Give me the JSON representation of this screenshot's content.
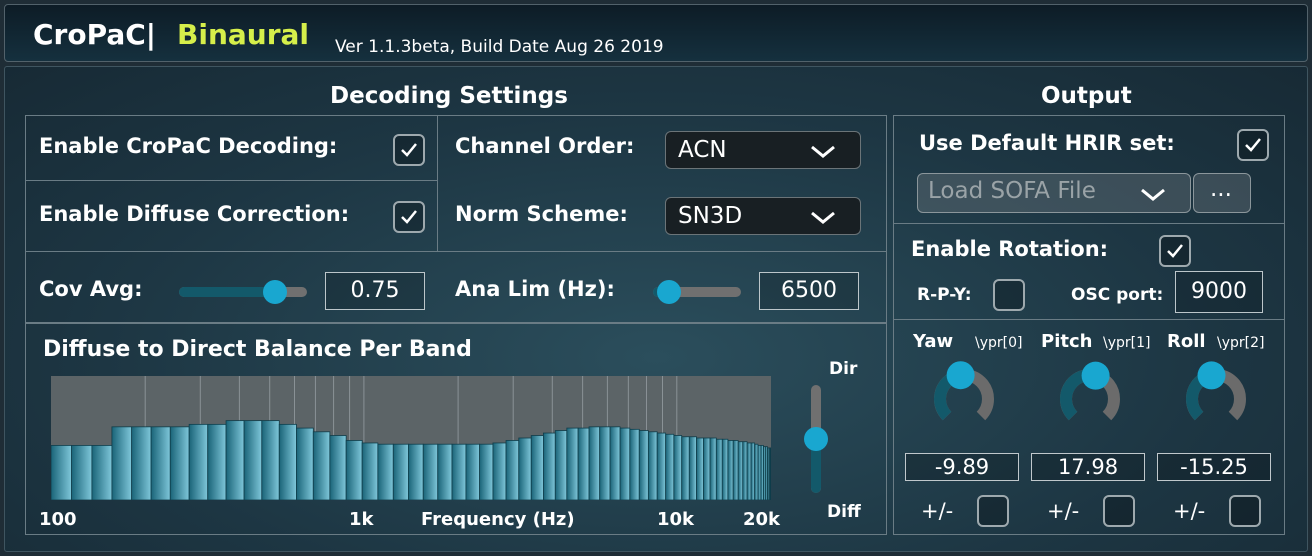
{
  "header": {
    "title": "CroPaC|",
    "subtitle": "Binaural",
    "version": "Ver 1.1.3beta, Build Date Aug 26 2019"
  },
  "decoding": {
    "title": "Decoding Settings",
    "enable_cropac_label": "Enable CroPaC Decoding:",
    "enable_cropac_checked": true,
    "enable_diffuse_label": "Enable Diffuse Correction:",
    "enable_diffuse_checked": true,
    "channel_order_label": "Channel Order:",
    "channel_order_value": "ACN",
    "norm_scheme_label": "Norm Scheme:",
    "norm_scheme_value": "SN3D",
    "cov_avg_label": "Cov Avg:",
    "cov_avg_value": "0.75",
    "cov_avg_fraction": 0.75,
    "ana_lim_label": "Ana Lim (Hz):",
    "ana_lim_value": "6500",
    "ana_lim_fraction": 0.18
  },
  "balance": {
    "title": "Diffuse to Direct Balance Per Band",
    "xlabel": "Frequency (Hz)",
    "x_ticks": [
      "100",
      "1k",
      "10k",
      "20k"
    ],
    "top_label": "Dir",
    "bottom_label": "Diff",
    "slider_fraction": 0.5
  },
  "chart_data": {
    "type": "bar",
    "xlabel": "Frequency (Hz)",
    "x_ticks": [
      "100",
      "1k",
      "10k",
      "20k"
    ],
    "values": [
      0.44,
      0.44,
      0.44,
      0.59,
      0.59,
      0.59,
      0.59,
      0.61,
      0.61,
      0.64,
      0.64,
      0.64,
      0.61,
      0.58,
      0.55,
      0.52,
      0.48,
      0.46,
      0.45,
      0.45,
      0.45,
      0.45,
      0.45,
      0.45,
      0.45,
      0.45,
      0.46,
      0.48,
      0.5,
      0.52,
      0.54,
      0.56,
      0.58,
      0.58,
      0.59,
      0.59,
      0.59,
      0.58,
      0.57,
      0.56,
      0.55,
      0.54,
      0.53,
      0.52,
      0.51,
      0.51,
      0.5,
      0.5,
      0.5,
      0.49,
      0.49,
      0.48,
      0.48,
      0.47,
      0.47,
      0.46,
      0.46,
      0.45,
      0.44,
      0.44,
      0.43,
      0.43,
      0.42,
      0.42,
      0.42,
      0.41
    ]
  },
  "output": {
    "title": "Output",
    "default_hrir_label": "Use Default HRIR set:",
    "default_hrir_checked": true,
    "load_sofa_label": "Load SOFA File",
    "browse_label": "...",
    "enable_rotation_label": "Enable Rotation:",
    "enable_rotation_checked": true,
    "rpy_label": "R-P-Y:",
    "rpy_checked": false,
    "osc_port_label": "OSC port:",
    "osc_port_value": "9000",
    "knobs": [
      {
        "label": "Yaw",
        "osc": "\\ypr[0]",
        "value": "-9.89",
        "fraction": 0.47,
        "flip_label": "+/-"
      },
      {
        "label": "Pitch",
        "osc": "\\ypr[1]",
        "value": "17.98",
        "fraction": 0.55,
        "flip_label": "+/-"
      },
      {
        "label": "Roll",
        "osc": "\\ypr[2]",
        "value": "-15.25",
        "fraction": 0.46,
        "flip_label": "+/-"
      }
    ]
  },
  "colors": {
    "accent": "#19a7d0",
    "subtitle": "#d6ef4a",
    "bar_fill_start": "#1a6478",
    "bar_fill_end": "#7fc7da"
  }
}
